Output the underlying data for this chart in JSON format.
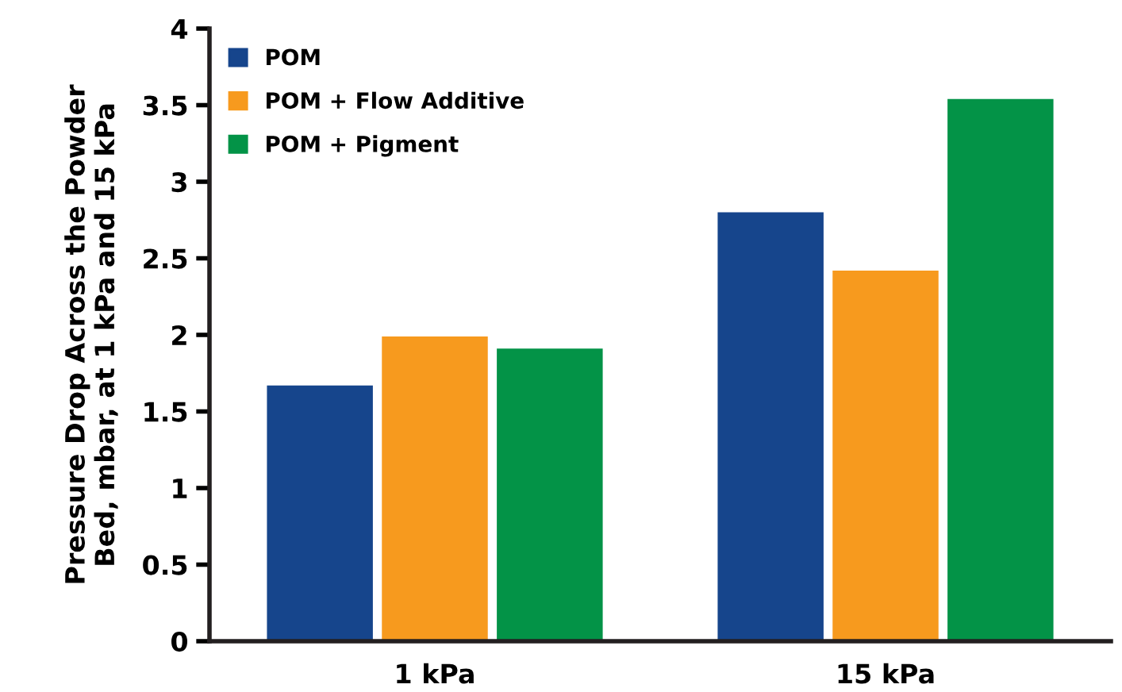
{
  "chart_data": {
    "type": "bar",
    "ylabel": "Pressure Drop Across the Powder\nBed, mbar, at 1 kPa and 15 kPa",
    "categories": [
      "1 kPa",
      "15 kPa"
    ],
    "series": [
      {
        "name": "POM",
        "color": "#16458c",
        "values": [
          1.67,
          2.8
        ]
      },
      {
        "name": "POM + Flow Additive",
        "color": "#f79a1e",
        "values": [
          1.99,
          2.42
        ]
      },
      {
        "name": "POM + Pigment",
        "color": "#039347",
        "values": [
          1.91,
          3.54
        ]
      }
    ],
    "ylim": [
      0,
      4
    ],
    "yticks": [
      0,
      0.5,
      1,
      1.5,
      2,
      2.5,
      3,
      3.5,
      4
    ],
    "grid": false,
    "legend": "top left"
  }
}
